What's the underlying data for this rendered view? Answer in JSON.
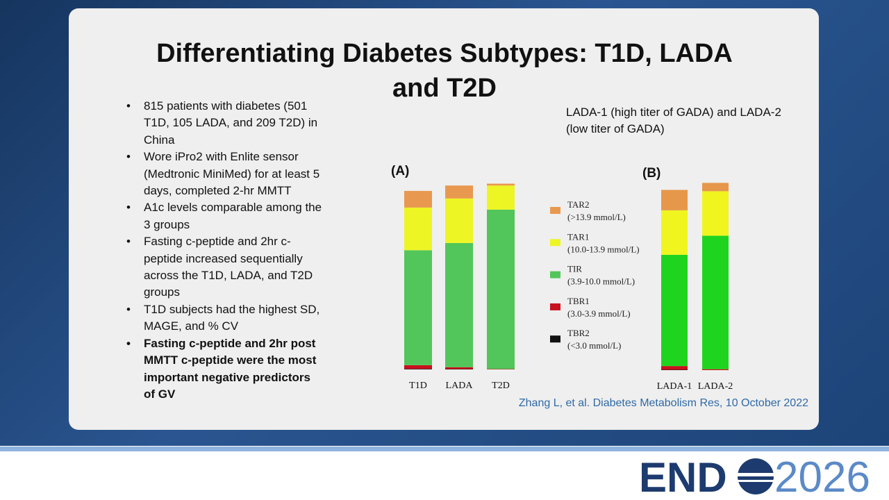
{
  "title": "Differentiating Diabetes Subtypes: T1D, LADA and T2D",
  "bullets": [
    {
      "text": "815 patients with diabetes (501 T1D, 105 LADA, and 209 T2D) in China",
      "bold": false
    },
    {
      "text": "Wore iPro2 with Enlite sensor (Medtronic MiniMed) for at least 5 days, completed 2-hr MMTT",
      "bold": false
    },
    {
      "text": "A1c levels comparable among the 3 groups",
      "bold": false
    },
    {
      "text": "Fasting c-peptide and 2hr c-peptide increased sequentially across the T1D, LADA, and T2D groups",
      "bold": false
    },
    {
      "text": "T1D subjects had the highest SD, MAGE, and % CV",
      "bold": false
    },
    {
      "text": "Fasting c-peptide and 2hr post MMTT c-peptide were the most important negative predictors of GV",
      "bold": true
    }
  ],
  "note": "LADA-1 (high titer of GADA) and LADA-2 (low titer of GADA)",
  "citation": "Zhang L, et al. Diabetes Metabolism Res, 10 October 2022",
  "logo": {
    "brand": "END",
    "year": "2026"
  },
  "chart_data": [
    {
      "type": "stacked_bar",
      "panel_label": "(A)",
      "categories": [
        "T1D",
        "LADA",
        "T2D"
      ],
      "ylim": [
        0,
        100
      ],
      "series": [
        {
          "name": "TAR2",
          "range": "(>13.9 mmol/L)",
          "color": "#e8994f",
          "values": [
            9,
            7,
            1
          ]
        },
        {
          "name": "TAR1",
          "range": "(10.0-13.9 mmol/L)",
          "color": "#eef524",
          "values": [
            23,
            24,
            13
          ]
        },
        {
          "name": "TIR",
          "range": "(3.9-10.0 mmol/L)",
          "color": "#52c65a",
          "values": [
            62,
            67,
            86
          ]
        },
        {
          "name": "TBR1",
          "range": "(3.0-3.9 mmol/L)",
          "color": "#c8101e",
          "values": [
            2,
            1,
            0.2
          ]
        },
        {
          "name": "TBR2",
          "range": "(<3.0 mmol/L)",
          "color": "#111111",
          "values": [
            0.3,
            0.2,
            0
          ]
        }
      ]
    },
    {
      "type": "stacked_bar",
      "panel_label": "(B)",
      "categories": [
        "LADA-1",
        "LADA-2"
      ],
      "ylim": [
        0,
        100
      ],
      "series": [
        {
          "color": "#e6974a",
          "values": [
            11,
            4.5
          ]
        },
        {
          "color": "#f0f520",
          "values": [
            24,
            24
          ]
        },
        {
          "color": "#1fd41f",
          "values": [
            60,
            72
          ]
        },
        {
          "color": "#c8101e",
          "values": [
            2,
            0.5
          ]
        },
        {
          "color": "#111111",
          "values": [
            0.2,
            0
          ]
        }
      ]
    }
  ]
}
